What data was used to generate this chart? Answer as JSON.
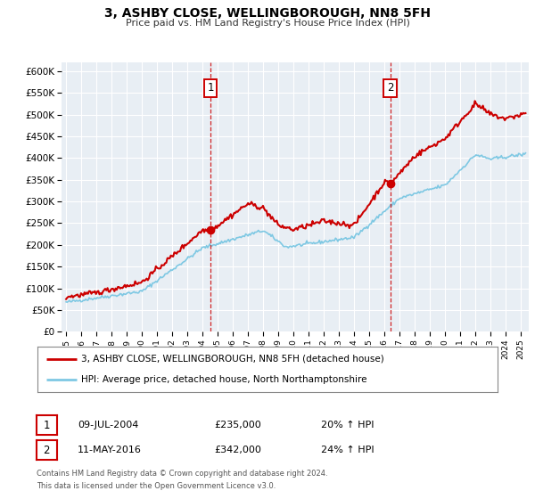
{
  "title": "3, ASHBY CLOSE, WELLINGBOROUGH, NN8 5FH",
  "subtitle": "Price paid vs. HM Land Registry's House Price Index (HPI)",
  "legend_line1": "3, ASHBY CLOSE, WELLINGBOROUGH, NN8 5FH (detached house)",
  "legend_line2": "HPI: Average price, detached house, North Northamptonshire",
  "footer1": "Contains HM Land Registry data © Crown copyright and database right 2024.",
  "footer2": "This data is licensed under the Open Government Licence v3.0.",
  "annotation1_label": "1",
  "annotation1_date": "09-JUL-2004",
  "annotation1_price": "£235,000",
  "annotation1_hpi": "20% ↑ HPI",
  "annotation2_label": "2",
  "annotation2_date": "11-MAY-2016",
  "annotation2_price": "£342,000",
  "annotation2_hpi": "24% ↑ HPI",
  "sale1_x": 2004.53,
  "sale1_y": 235000,
  "sale2_x": 2016.37,
  "sale2_y": 342000,
  "vline1_x": 2004.53,
  "vline2_x": 2016.37,
  "ylim": [
    0,
    620000
  ],
  "xlim_start": 1994.7,
  "xlim_end": 2025.5,
  "price_line_color": "#cc0000",
  "hpi_line_color": "#7ec8e3",
  "background_color": "#ffffff",
  "plot_bg_color": "#e8eef4",
  "grid_color": "#ffffff",
  "vline_color": "#cc0000"
}
